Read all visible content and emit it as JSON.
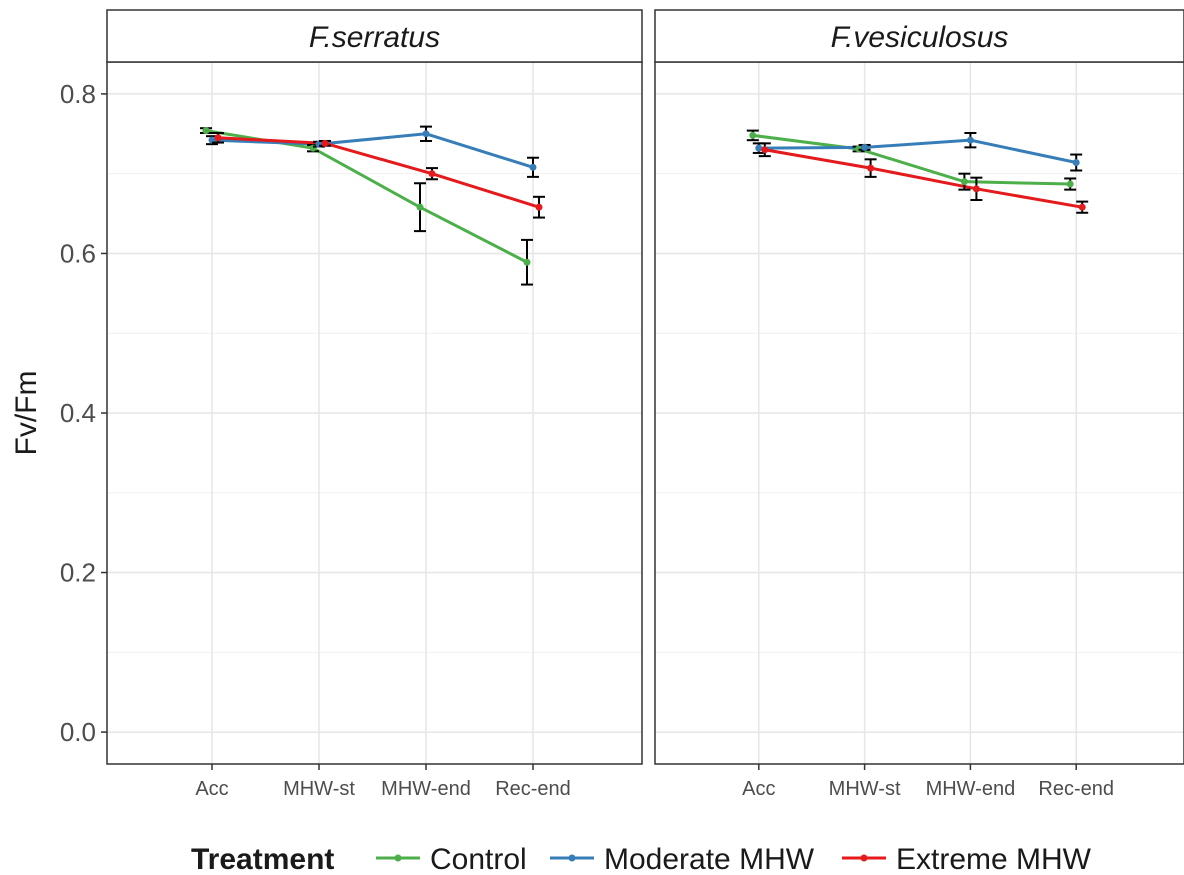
{
  "chart_data": {
    "type": "line",
    "facet_titles": [
      "F.serratus",
      "F.vesiculosus"
    ],
    "ylabel": "Fv/Fm",
    "xlabel": "",
    "categories": [
      "Acc",
      "MHW-st",
      "MHW-end",
      "Rec-end"
    ],
    "ylim": [
      -0.04,
      0.84
    ],
    "yticks": [
      "0.0",
      "0.2",
      "0.4",
      "0.6",
      "0.8"
    ],
    "grid": true,
    "legend": {
      "title": "Treatment",
      "position": "bottom",
      "entries": [
        "Control",
        "Moderate MHW",
        "Extreme MHW"
      ]
    },
    "colors": {
      "Control": "#4daf4a",
      "Moderate MHW": "#377eb8",
      "Extreme MHW": "#e41a1c"
    },
    "panels": [
      {
        "title": "F.serratus",
        "series": [
          {
            "name": "Control",
            "values": [
              0.754,
              0.732,
              0.658,
              0.589
            ],
            "errors": [
              0.003,
              0.004,
              0.03,
              0.028
            ]
          },
          {
            "name": "Moderate MHW",
            "values": [
              0.742,
              0.737,
              0.75,
              0.708
            ],
            "errors": [
              0.005,
              0.003,
              0.009,
              0.012
            ]
          },
          {
            "name": "Extreme MHW",
            "values": [
              0.745,
              0.738,
              0.7,
              0.658
            ],
            "errors": [
              0.006,
              0.003,
              0.007,
              0.013
            ]
          }
        ]
      },
      {
        "title": "F.vesiculosus",
        "series": [
          {
            "name": "Control",
            "values": [
              0.748,
              0.731,
              0.69,
              0.687
            ],
            "errors": [
              0.006,
              0.003,
              0.01,
              0.007
            ]
          },
          {
            "name": "Moderate MHW",
            "values": [
              0.732,
              0.733,
              0.742,
              0.714
            ],
            "errors": [
              0.006,
              0.003,
              0.009,
              0.01
            ]
          },
          {
            "name": "Extreme MHW",
            "values": [
              0.73,
              0.707,
              0.681,
              0.658
            ],
            "errors": [
              0.008,
              0.011,
              0.014,
              0.007
            ]
          }
        ]
      }
    ]
  }
}
